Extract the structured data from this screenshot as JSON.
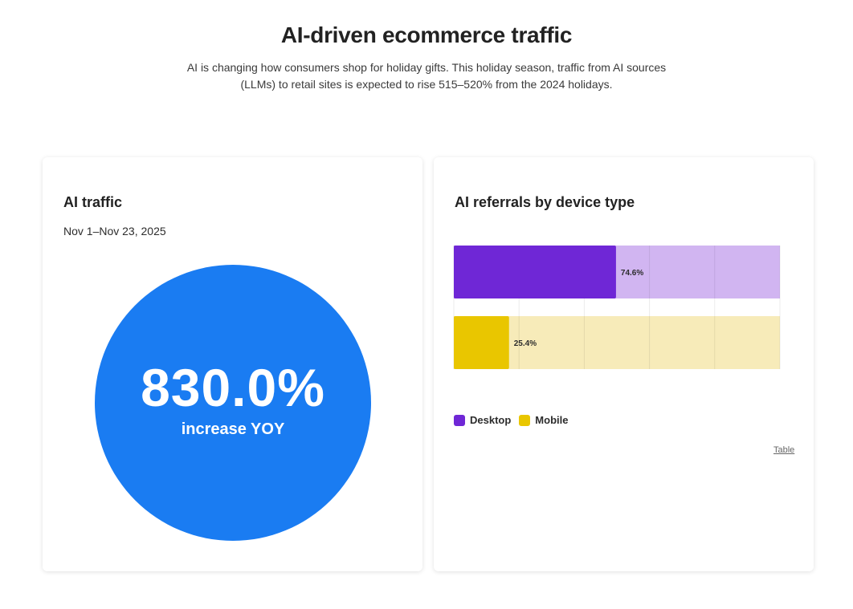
{
  "header": {
    "title": "AI-driven ecommerce traffic",
    "subtitle": "AI is changing how consumers shop for holiday gifts. This holiday season, traffic from AI sources (LLMs) to retail sites is expected to rise 515–520% from the 2024 holidays."
  },
  "traffic_card": {
    "title": "AI traffic",
    "date_range": "Nov 1–Nov 23, 2025",
    "value": "830.0%",
    "label": "increase YOY",
    "color": "#1a7cf2"
  },
  "device_card": {
    "title": "AI referrals by device type",
    "table_link": "Table"
  },
  "chart_data": {
    "type": "bar",
    "orientation": "horizontal",
    "title": "AI referrals by device type",
    "categories": [
      "Desktop",
      "Mobile"
    ],
    "series": [
      {
        "name": "Desktop",
        "value": 74.6,
        "label": "74.6%",
        "color": "#6f27d6",
        "track_color": "#d1b5f1"
      },
      {
        "name": "Mobile",
        "value": 25.4,
        "label": "25.4%",
        "color": "#e9c600",
        "track_color": "#f7ebb9"
      }
    ],
    "xlim": [
      0,
      150
    ],
    "grid": true,
    "legend_position": "bottom-left",
    "legend": [
      "Desktop",
      "Mobile"
    ]
  }
}
